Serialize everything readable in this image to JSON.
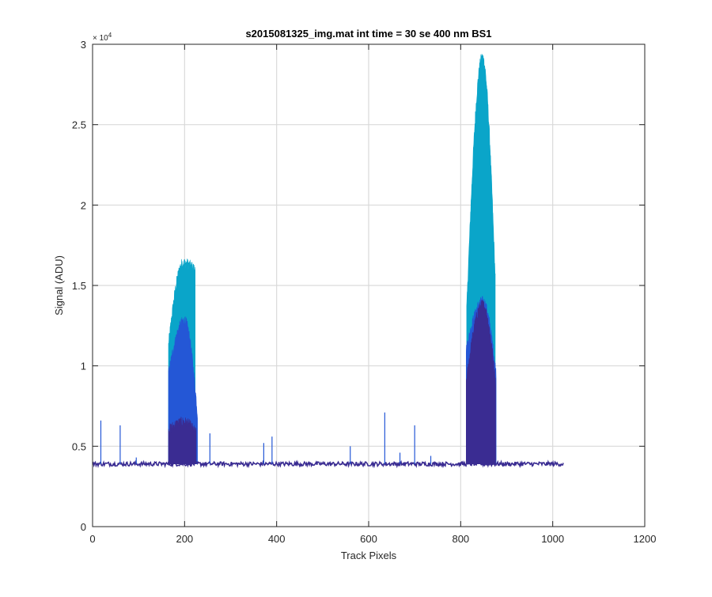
{
  "chart_data": {
    "type": "area",
    "title": "s2015081325_img.mat int time = 30 se  400 nm BS1",
    "xlabel": "Track Pixels",
    "ylabel": "Signal (ADU)",
    "y_exponent_label": "× 10",
    "y_exponent_power": "4",
    "xlim": [
      0,
      1200
    ],
    "ylim": [
      0,
      30000
    ],
    "xticks": [
      0,
      200,
      400,
      600,
      800,
      1000,
      1200
    ],
    "xtick_labels": [
      "0",
      "200",
      "400",
      "600",
      "800",
      "1000",
      "1200"
    ],
    "yticks": [
      0,
      5000,
      10000,
      15000,
      20000,
      25000,
      30000
    ],
    "ytick_labels": [
      "0",
      "0.5",
      "1",
      "1.5",
      "2",
      "2.5",
      "3"
    ],
    "grid": true,
    "baseline": 3900,
    "x_extent": [
      0,
      1024
    ],
    "colors": {
      "light": "#0aa5c9",
      "mid": "#2457d6",
      "dark": "#3a2c92",
      "axis": "#262626",
      "grid": "#d9d9d9"
    },
    "layers": [
      {
        "color": "light",
        "bumps": [
          {
            "x0": 165,
            "x1": 223,
            "y_start": 11300,
            "y_peak": 16400,
            "y_end": 16000
          },
          {
            "x0": 813,
            "x1": 875,
            "y_start": 13500,
            "y_peak": 29200,
            "y_end": 15500
          }
        ]
      },
      {
        "color": "mid",
        "bumps": [
          {
            "x0": 165,
            "x1": 228,
            "y_start": 9500,
            "y_peak": 12800,
            "y_end": 7000
          },
          {
            "x0": 812,
            "x1": 877,
            "y_start": 11000,
            "y_peak": 14000,
            "y_end": 9500
          }
        ]
      },
      {
        "color": "dark",
        "bumps": [
          {
            "x0": 165,
            "x1": 225,
            "y_start": 6000,
            "y_peak": 6500,
            "y_end": 5800
          },
          {
            "x0": 812,
            "x1": 876,
            "y_start": 9000,
            "y_peak": 13800,
            "y_end": 9000
          }
        ]
      }
    ],
    "spikes": [
      {
        "x": 18,
        "y": 6600
      },
      {
        "x": 60,
        "y": 6300
      },
      {
        "x": 95,
        "y": 4300
      },
      {
        "x": 255,
        "y": 5800
      },
      {
        "x": 372,
        "y": 5200
      },
      {
        "x": 390,
        "y": 5600
      },
      {
        "x": 560,
        "y": 5000
      },
      {
        "x": 635,
        "y": 7100
      },
      {
        "x": 668,
        "y": 4600
      },
      {
        "x": 700,
        "y": 6300
      },
      {
        "x": 735,
        "y": 4400
      }
    ]
  }
}
